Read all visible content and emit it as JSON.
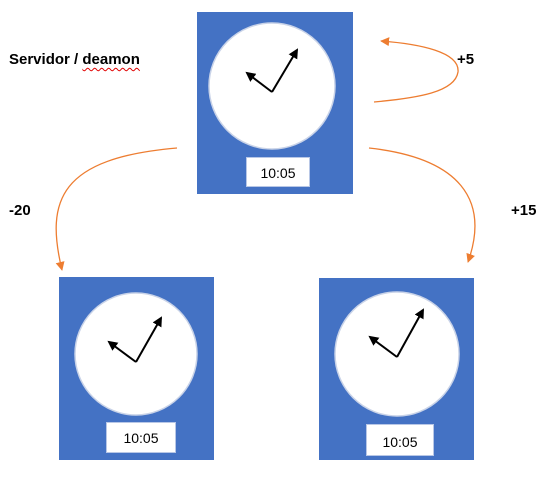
{
  "server": {
    "label_prefix": "Servidor / ",
    "label_word": "deamon",
    "time": "10:05",
    "offset_feedback": "+5"
  },
  "clients": [
    {
      "position": "left",
      "offset": "-20",
      "time": "10:05"
    },
    {
      "position": "right",
      "offset": "+15",
      "time": "10:05"
    }
  ],
  "colors": {
    "panel": "#4472c4",
    "clock_face": "#ffffff",
    "hands": "#000000",
    "arrows": "#ed7d31"
  }
}
